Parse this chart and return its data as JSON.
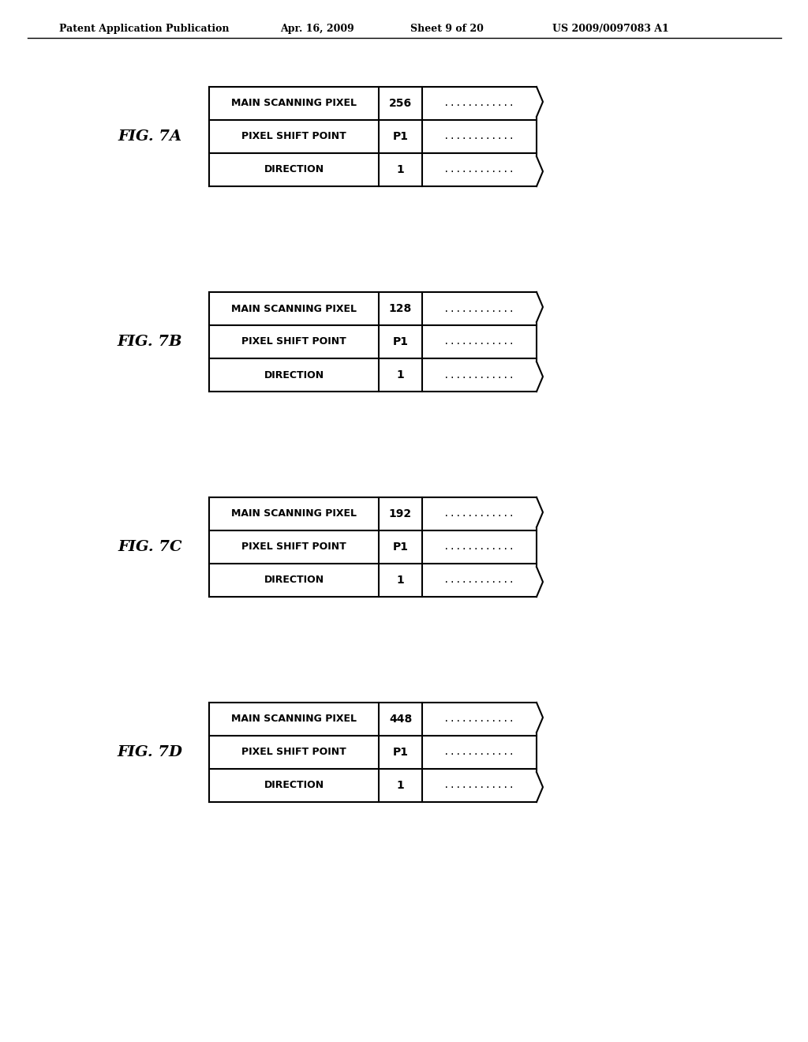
{
  "bg_color": "#ffffff",
  "header_text": "Patent Application Publication",
  "header_date": "Apr. 16, 2009",
  "header_sheet": "Sheet 9 of 20",
  "header_patent": "US 2009/0097083 A1",
  "figures": [
    {
      "label": "FIG. 7A",
      "rows": [
        {
          "col1": "MAIN SCANNING PIXEL",
          "col2": "256",
          "col3": "............"
        },
        {
          "col1": "PIXEL SHIFT POINT",
          "col2": "P1",
          "col3": "............"
        },
        {
          "col1": "DIRECTION",
          "col2": "1",
          "col3": "............"
        }
      ]
    },
    {
      "label": "FIG. 7B",
      "rows": [
        {
          "col1": "MAIN SCANNING PIXEL",
          "col2": "128",
          "col3": "............"
        },
        {
          "col1": "PIXEL SHIFT POINT",
          "col2": "P1",
          "col3": "............"
        },
        {
          "col1": "DIRECTION",
          "col2": "1",
          "col3": "............"
        }
      ]
    },
    {
      "label": "FIG. 7C",
      "rows": [
        {
          "col1": "MAIN SCANNING PIXEL",
          "col2": "192",
          "col3": "............"
        },
        {
          "col1": "PIXEL SHIFT POINT",
          "col2": "P1",
          "col3": "............"
        },
        {
          "col1": "DIRECTION",
          "col2": "1",
          "col3": "............"
        }
      ]
    },
    {
      "label": "FIG. 7D",
      "rows": [
        {
          "col1": "MAIN SCANNING PIXEL",
          "col2": "448",
          "col3": "............"
        },
        {
          "col1": "PIXEL SHIFT POINT",
          "col2": "P1",
          "col3": "............"
        },
        {
          "col1": "DIRECTION",
          "col2": "1",
          "col3": "............"
        }
      ]
    }
  ]
}
